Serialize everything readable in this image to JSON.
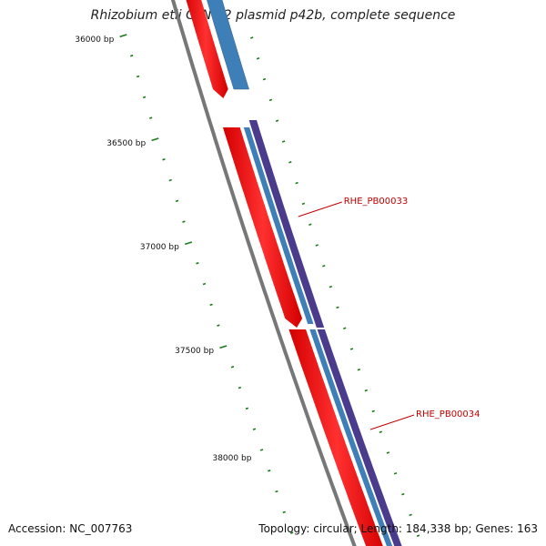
{
  "title": "Rhizobium etli CFN 42 plasmid p42b, complete sequence",
  "accession_text": "Accession: NC_007763",
  "summary_text": "Topology: circular; Length: 184,338 bp; Genes: 163",
  "scale_labels": [
    "36000 bp",
    "36500 bp",
    "37000 bp",
    "37500 bp",
    "38000 bp"
  ],
  "gene_labels": [
    "RHE_PB00033",
    "RHE_PB00034"
  ],
  "colors": {
    "backbone": "#777777",
    "cds_forward": "#ff0000",
    "gene_forward": "#3f7fb8",
    "gene_track_alt": "#4b3b8c",
    "tick": "#1a7a1a",
    "label": "#c00000"
  }
}
